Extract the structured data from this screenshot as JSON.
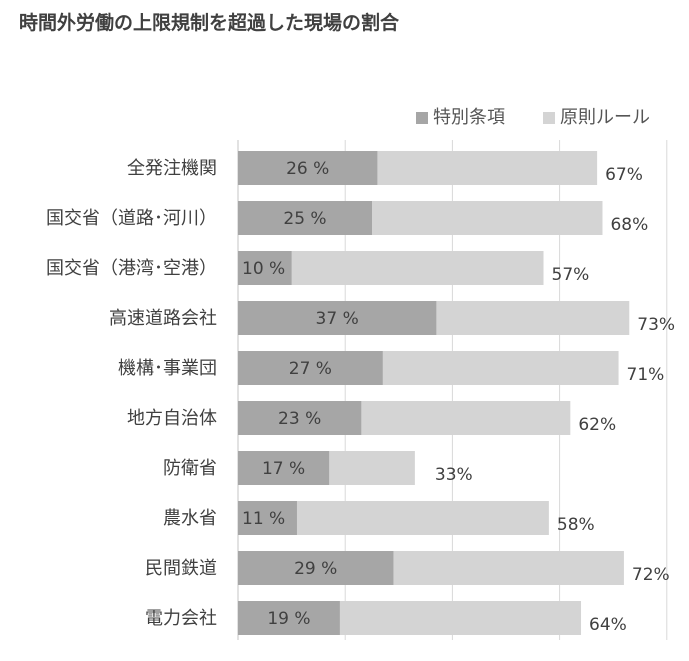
{
  "title": "時間外労働の上限規制を超過した現場の割合",
  "chart_data": {
    "type": "bar",
    "orientation": "horizontal",
    "title": "時間外労働の上限規制を超過した現場の割合",
    "categories": [
      "全発注機関",
      "国交省（道路･河川）",
      "国交省（港湾･空港）",
      "高速道路会社",
      "機構･事業団",
      "地方自治体",
      "防衛省",
      "農水省",
      "民間鉄道",
      "電力会社"
    ],
    "series": [
      {
        "name": "特別条項",
        "color": "#a6a6a6",
        "values": [
          26,
          25,
          10,
          37,
          27,
          23,
          17,
          11,
          29,
          19
        ],
        "labels": [
          "26 %",
          "25 %",
          "10 %",
          "37 %",
          "27 %",
          "23 %",
          "17 %",
          "11 %",
          "29 %",
          "19 %"
        ]
      },
      {
        "name": "原則ルール",
        "color": "#d4d4d4",
        "values": [
          67,
          68,
          57,
          73,
          71,
          62,
          33,
          58,
          72,
          64
        ],
        "labels": [
          "67%",
          "68%",
          "57%",
          "73%",
          "71%",
          "62%",
          "33%",
          "58%",
          "72%",
          "64%"
        ]
      }
    ],
    "xlim": [
      0,
      80
    ],
    "xlabel": "",
    "ylabel": "",
    "grid": true,
    "legend_position": "top-right",
    "gridline_color": "#d9d9d9"
  }
}
